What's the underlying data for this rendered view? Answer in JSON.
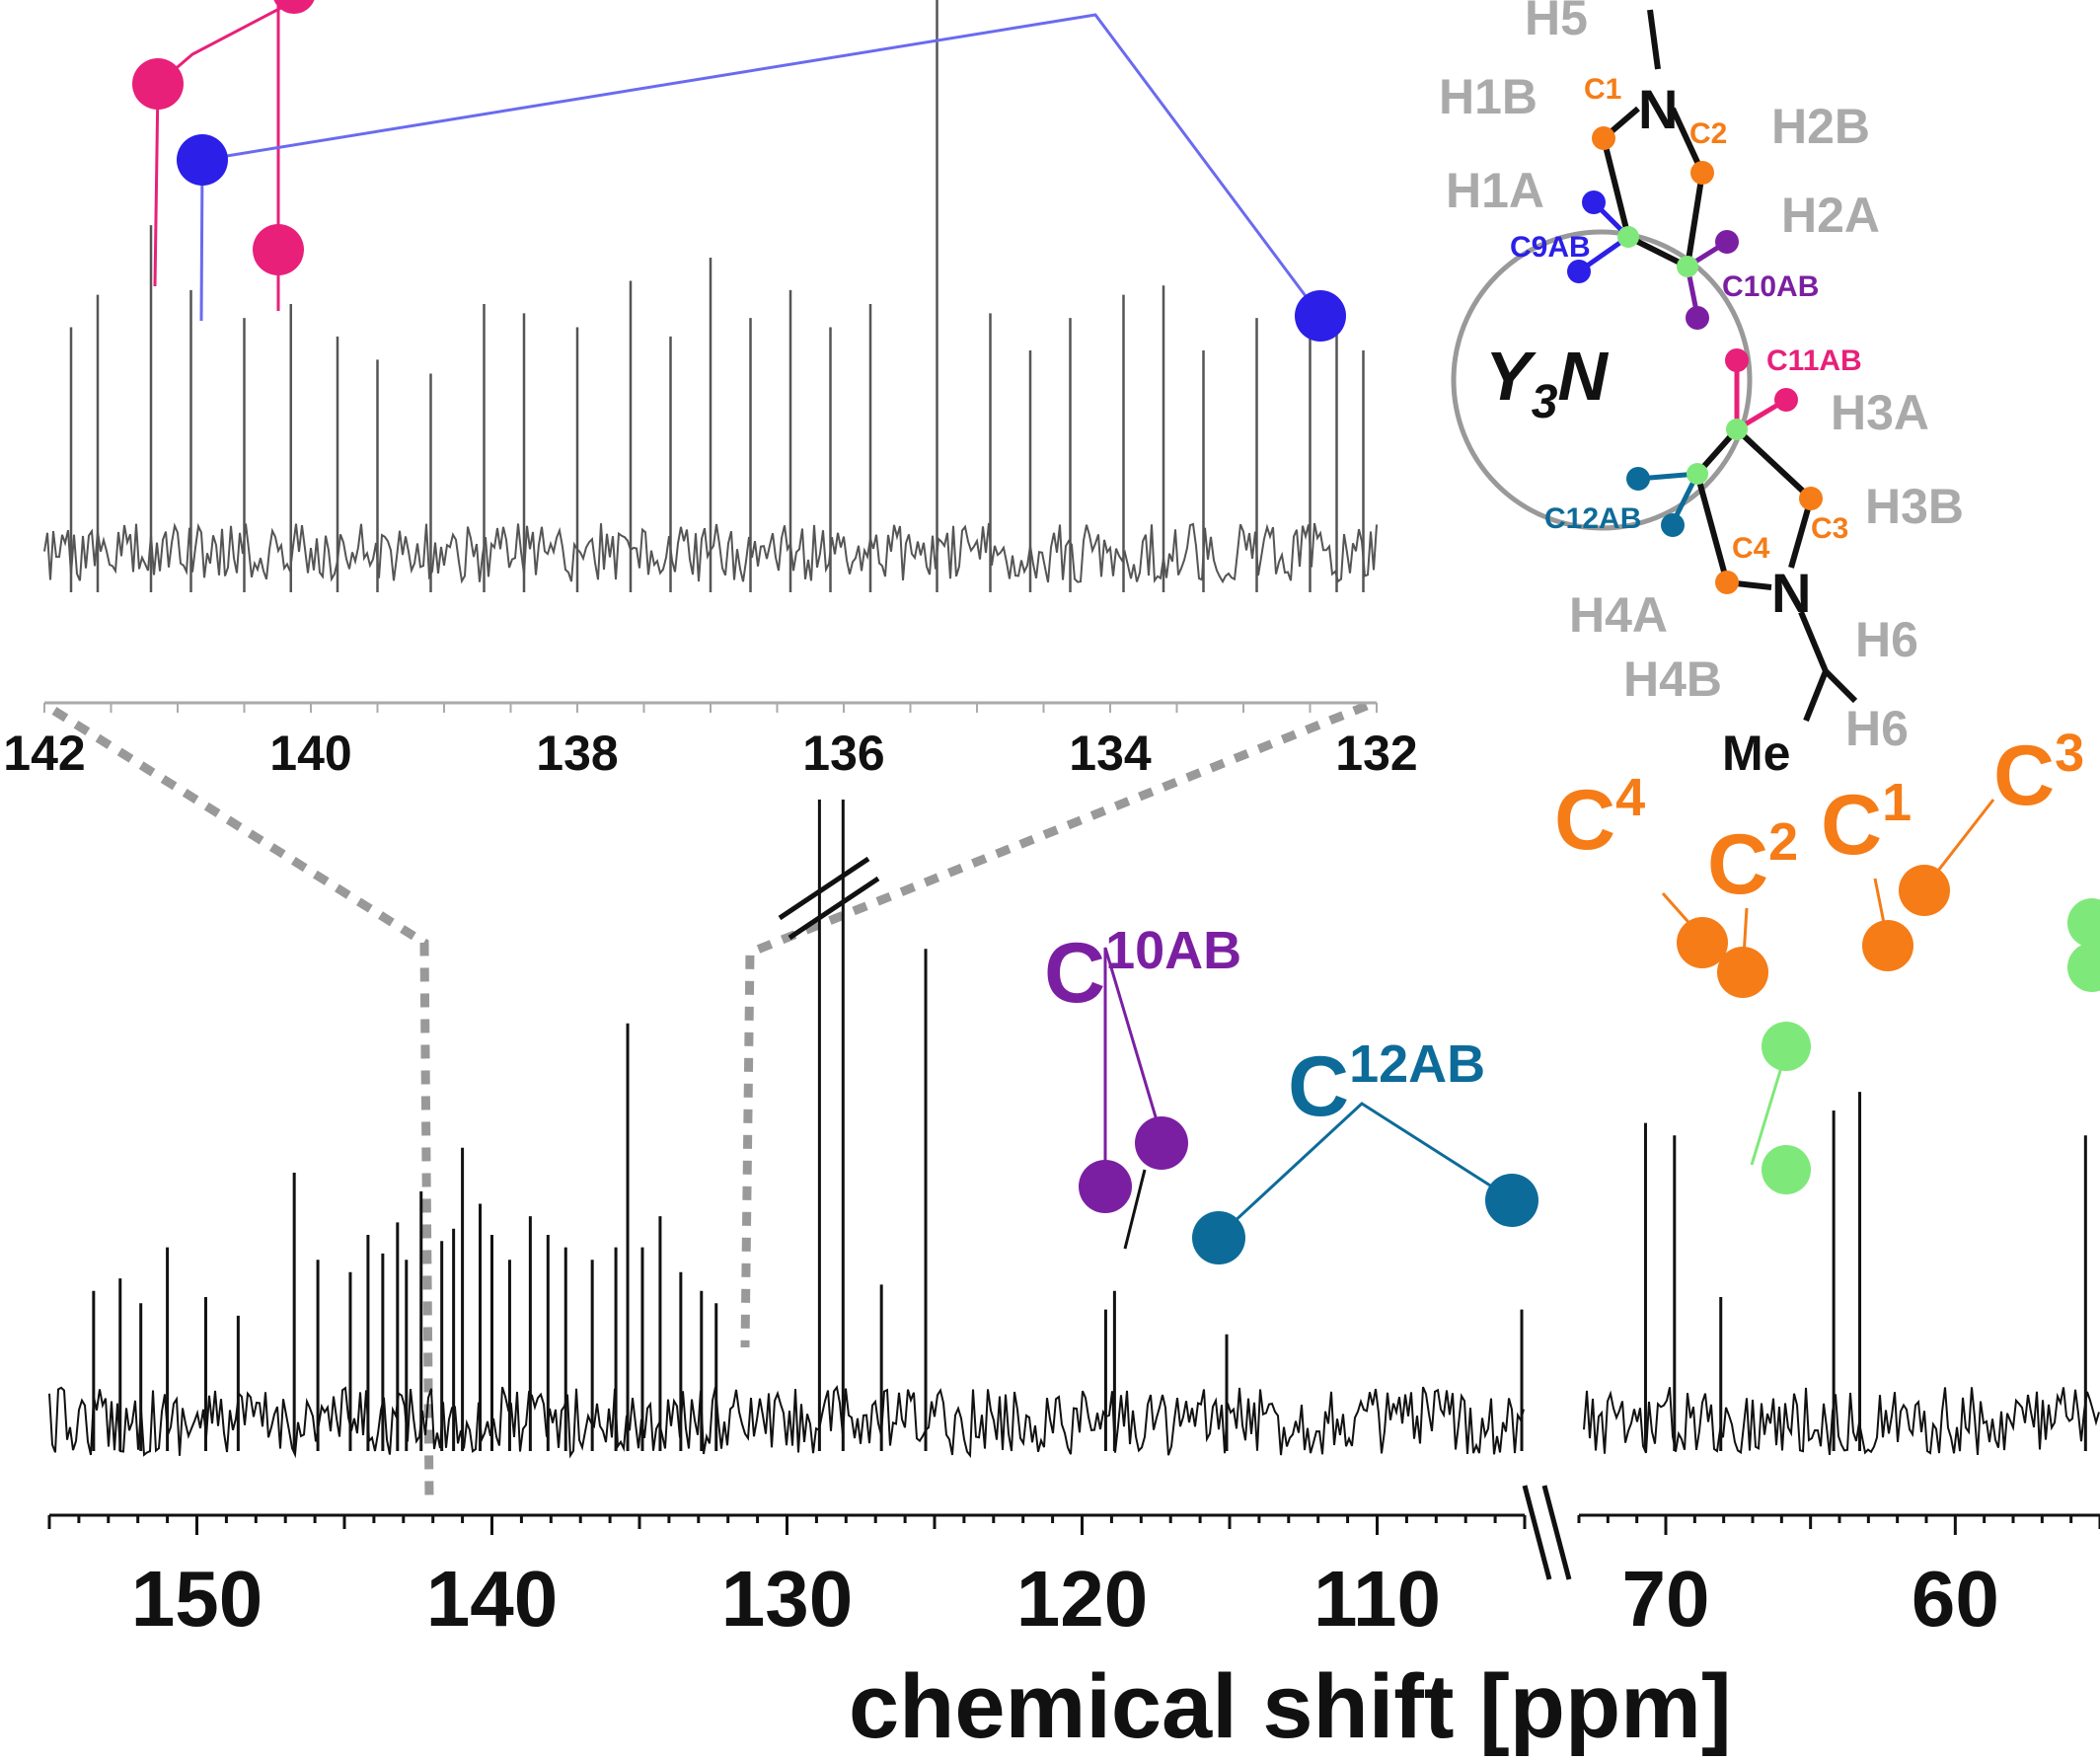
{
  "chart_data": {
    "type": "line",
    "xlabel": "chemical shift [ppm]",
    "main_axis": {
      "segments": [
        {
          "range": [
            155,
            105
          ],
          "ticks": [
            150,
            140,
            130,
            120,
            110
          ]
        },
        {
          "range": [
            73,
            55
          ],
          "ticks": [
            70,
            60
          ]
        }
      ]
    },
    "inset_axis": {
      "range": [
        142,
        132
      ],
      "ticks": [
        142,
        140,
        138,
        136,
        134,
        132
      ]
    },
    "main_peaks": [
      {
        "x": 153.5,
        "h": 0.21
      },
      {
        "x": 152.6,
        "h": 0.23
      },
      {
        "x": 151.9,
        "h": 0.19
      },
      {
        "x": 151.0,
        "h": 0.28
      },
      {
        "x": 149.7,
        "h": 0.2
      },
      {
        "x": 148.6,
        "h": 0.17
      },
      {
        "x": 146.7,
        "h": 0.4
      },
      {
        "x": 145.9,
        "h": 0.26
      },
      {
        "x": 144.8,
        "h": 0.24
      },
      {
        "x": 144.2,
        "h": 0.3
      },
      {
        "x": 143.7,
        "h": 0.27
      },
      {
        "x": 143.2,
        "h": 0.32
      },
      {
        "x": 142.9,
        "h": 0.26
      },
      {
        "x": 142.4,
        "h": 0.37
      },
      {
        "x": 141.7,
        "h": 0.29
      },
      {
        "x": 141.3,
        "h": 0.31
      },
      {
        "x": 141.0,
        "h": 0.44
      },
      {
        "x": 140.4,
        "h": 0.35
      },
      {
        "x": 140.0,
        "h": 0.3
      },
      {
        "x": 139.4,
        "h": 0.26
      },
      {
        "x": 138.7,
        "h": 0.33
      },
      {
        "x": 138.1,
        "h": 0.3
      },
      {
        "x": 137.5,
        "h": 0.28
      },
      {
        "x": 136.6,
        "h": 0.26
      },
      {
        "x": 135.8,
        "h": 0.28
      },
      {
        "x": 135.4,
        "h": 0.64
      },
      {
        "x": 134.9,
        "h": 0.28
      },
      {
        "x": 134.3,
        "h": 0.33
      },
      {
        "x": 133.6,
        "h": 0.24
      },
      {
        "x": 132.9,
        "h": 0.21
      },
      {
        "x": 132.4,
        "h": 0.19
      },
      {
        "x": 128.9,
        "h": 1.0
      },
      {
        "x": 128.1,
        "h": 1.0
      },
      {
        "x": 126.8,
        "h": 0.22
      },
      {
        "x": 125.3,
        "h": 0.76
      },
      {
        "x": 119.2,
        "h": 0.18
      },
      {
        "x": 118.9,
        "h": 0.21
      },
      {
        "x": 115.1,
        "h": 0.14
      },
      {
        "x": 105.1,
        "h": 0.18
      },
      {
        "x": 70.7,
        "h": 0.48
      },
      {
        "x": 69.7,
        "h": 0.46
      },
      {
        "x": 68.1,
        "h": 0.2
      },
      {
        "x": 64.2,
        "h": 0.5
      },
      {
        "x": 63.3,
        "h": 0.53
      },
      {
        "x": 55.5,
        "h": 0.46
      }
    ],
    "inset_peaks": [
      {
        "x": 141.8,
        "h": 0.55
      },
      {
        "x": 141.6,
        "h": 0.62
      },
      {
        "x": 141.2,
        "h": 0.77
      },
      {
        "x": 140.9,
        "h": 0.63
      },
      {
        "x": 140.5,
        "h": 0.57
      },
      {
        "x": 140.15,
        "h": 0.6
      },
      {
        "x": 139.8,
        "h": 0.53
      },
      {
        "x": 139.5,
        "h": 0.48
      },
      {
        "x": 139.1,
        "h": 0.45
      },
      {
        "x": 138.7,
        "h": 0.6
      },
      {
        "x": 138.4,
        "h": 0.58
      },
      {
        "x": 138.0,
        "h": 0.55
      },
      {
        "x": 137.6,
        "h": 0.65
      },
      {
        "x": 137.3,
        "h": 0.53
      },
      {
        "x": 137.0,
        "h": 0.7
      },
      {
        "x": 136.7,
        "h": 0.57
      },
      {
        "x": 136.4,
        "h": 0.63
      },
      {
        "x": 136.1,
        "h": 0.55
      },
      {
        "x": 135.8,
        "h": 0.6
      },
      {
        "x": 135.3,
        "h": 1.0
      },
      {
        "x": 134.9,
        "h": 0.58
      },
      {
        "x": 134.6,
        "h": 0.5
      },
      {
        "x": 134.3,
        "h": 0.57
      },
      {
        "x": 133.9,
        "h": 0.62
      },
      {
        "x": 133.6,
        "h": 0.64
      },
      {
        "x": 133.3,
        "h": 0.5
      },
      {
        "x": 132.9,
        "h": 0.57
      },
      {
        "x": 132.5,
        "h": 0.55
      },
      {
        "x": 132.3,
        "h": 0.58
      },
      {
        "x": 132.1,
        "h": 0.5
      }
    ],
    "annotations": [
      {
        "label": "C",
        "sup": "10AB",
        "color": "#7b1fa2"
      },
      {
        "label": "C",
        "sup": "12AB",
        "color": "#0d6b99"
      },
      {
        "label": "C",
        "sup": "4",
        "color": "#f57c17"
      },
      {
        "label": "C",
        "sup": "2",
        "color": "#f57c17"
      },
      {
        "label": "C",
        "sup": "1",
        "color": "#f57c17"
      },
      {
        "label": "C",
        "sup": "3",
        "color": "#f57c17"
      }
    ],
    "colors": {
      "spectrum": "#111111",
      "inset_spectrum": "#555555",
      "magenta": "#e8207a",
      "blue": "#2b1fe8",
      "blue_line": "#6a6af0",
      "purple": "#7b1fa2",
      "teal": "#0d6b99",
      "orange": "#f57c17",
      "green": "#7fe87a",
      "dash": "#999999"
    }
  },
  "molecule": {
    "center_label": "Y",
    "center_sub": "3",
    "center_tail": "N",
    "atoms": [
      "N",
      "N"
    ],
    "hydrogens": [
      "H5",
      "H1B",
      "H2B",
      "H1A",
      "H2A",
      "H3A",
      "H3B",
      "H4A",
      "H4B",
      "H6",
      "H6"
    ],
    "carbons": [
      "C1",
      "C2",
      "C9AB",
      "C10AB",
      "C11AB",
      "C12AB",
      "C3",
      "C4"
    ],
    "group": "Me"
  }
}
